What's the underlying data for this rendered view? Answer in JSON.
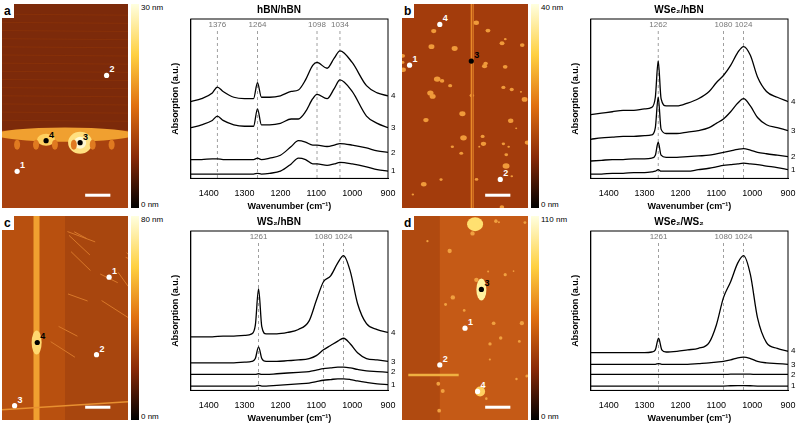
{
  "chart_data": [
    {
      "type": "line",
      "panel": "a",
      "title": "hBN/hBN",
      "x_label": "Wavenumber (cm⁻¹)",
      "y_label": "Absorption (a.u.)",
      "x": [
        1450,
        1420,
        1390,
        1376,
        1360,
        1330,
        1300,
        1275,
        1264,
        1253,
        1230,
        1200,
        1170,
        1150,
        1130,
        1110,
        1098,
        1070,
        1050,
        1034,
        1000,
        960,
        930,
        900
      ],
      "xlim": [
        1450,
        900
      ],
      "xticks": [
        1400,
        1300,
        1200,
        1100,
        1000,
        900
      ],
      "ylim": [
        0,
        11
      ],
      "tick_labels": "x",
      "grid": false,
      "peaks": [
        1376,
        1264,
        1098,
        1034
      ],
      "series": [
        {
          "name": "1",
          "color": "#000000",
          "values": [
            0.3,
            0.3,
            0.3,
            0.3,
            0.3,
            0.3,
            0.3,
            0.3,
            0.35,
            0.3,
            0.35,
            0.5,
            1.0,
            1.4,
            1.3,
            1.0,
            1.0,
            0.9,
            1.0,
            1.1,
            1.0,
            0.8,
            0.6,
            0.5
          ]
        },
        {
          "name": "2",
          "color": "#000000",
          "values": [
            1.3,
            1.3,
            1.35,
            1.35,
            1.3,
            1.3,
            1.3,
            1.3,
            1.4,
            1.3,
            1.4,
            1.6,
            2.2,
            2.6,
            2.5,
            2.3,
            2.3,
            2.2,
            2.3,
            2.4,
            2.3,
            2.1,
            1.9,
            1.8
          ]
        },
        {
          "name": "3",
          "color": "#000000",
          "values": [
            3.5,
            3.7,
            4.0,
            4.3,
            4.0,
            3.7,
            3.6,
            3.6,
            4.8,
            3.7,
            3.7,
            3.8,
            4.1,
            4.1,
            4.6,
            5.5,
            5.8,
            5.5,
            6.2,
            6.8,
            6.0,
            4.3,
            3.8,
            3.5
          ]
        },
        {
          "name": "4",
          "color": "#000000",
          "values": [
            5.3,
            5.5,
            5.9,
            6.3,
            6.0,
            5.6,
            5.5,
            5.5,
            6.6,
            5.6,
            5.6,
            5.7,
            6.0,
            6.1,
            6.8,
            7.8,
            8.0,
            7.6,
            8.3,
            8.8,
            8.0,
            6.4,
            5.9,
            5.7
          ]
        }
      ],
      "image": {
        "points": [
          "1",
          "2",
          "3",
          "4"
        ],
        "colorbar": {
          "range": [
            0,
            30
          ],
          "ticks": [
            {
              "value": 0,
              "label": "0 nm"
            },
            {
              "value": 30,
              "label": "30 nm"
            }
          ]
        }
      }
    },
    {
      "type": "line",
      "panel": "b",
      "title": "WSe₂/hBN",
      "x_label": "Wavenumber (cm⁻¹)",
      "y_label": "Absorption (a.u.)",
      "x": [
        1450,
        1420,
        1390,
        1360,
        1330,
        1300,
        1280,
        1270,
        1262,
        1254,
        1240,
        1210,
        1180,
        1150,
        1120,
        1100,
        1080,
        1060,
        1040,
        1024,
        1005,
        985,
        960,
        930,
        900
      ],
      "xlim": [
        1450,
        900
      ],
      "xticks": [
        1400,
        1300,
        1200,
        1100,
        1000,
        900
      ],
      "ylim": [
        0,
        11
      ],
      "tick_labels": "x",
      "grid": false,
      "peaks": [
        1262,
        1080,
        1024
      ],
      "series": [
        {
          "name": "1",
          "color": "#000000",
          "values": [
            0.3,
            0.3,
            0.35,
            0.35,
            0.4,
            0.4,
            0.45,
            0.5,
            0.6,
            0.5,
            0.5,
            0.5,
            0.5,
            0.6,
            0.7,
            0.8,
            0.9,
            0.95,
            1.0,
            1.05,
            1.0,
            0.95,
            0.85,
            0.75,
            0.6
          ]
        },
        {
          "name": "2",
          "color": "#000000",
          "values": [
            1.2,
            1.25,
            1.3,
            1.3,
            1.35,
            1.35,
            1.4,
            1.6,
            2.5,
            1.6,
            1.45,
            1.45,
            1.5,
            1.55,
            1.6,
            1.7,
            1.8,
            1.9,
            2.0,
            2.05,
            1.95,
            1.8,
            1.7,
            1.6,
            1.5
          ]
        },
        {
          "name": "3",
          "color": "#000000",
          "values": [
            2.7,
            2.8,
            2.85,
            2.9,
            2.9,
            2.95,
            3.0,
            3.5,
            5.6,
            3.4,
            3.1,
            3.1,
            3.2,
            3.3,
            3.5,
            3.8,
            4.1,
            4.6,
            5.2,
            5.5,
            5.0,
            4.2,
            3.7,
            3.5,
            3.3
          ]
        },
        {
          "name": "4",
          "color": "#000000",
          "values": [
            4.4,
            4.5,
            4.6,
            4.7,
            4.7,
            4.8,
            4.9,
            5.6,
            8.1,
            5.5,
            5.0,
            5.0,
            5.2,
            5.5,
            6.0,
            6.6,
            7.1,
            7.8,
            8.7,
            9.1,
            8.5,
            7.0,
            6.0,
            5.6,
            5.3
          ]
        }
      ],
      "image": {
        "points": [
          "1",
          "2",
          "3",
          "4"
        ],
        "colorbar": {
          "range": [
            0,
            40
          ],
          "ticks": [
            {
              "value": 0,
              "label": "0 nm"
            },
            {
              "value": 40,
              "label": "40 nm"
            }
          ]
        }
      }
    },
    {
      "type": "line",
      "panel": "c",
      "title": "WS₂/hBN",
      "x_label": "Wavenumber (cm⁻¹)",
      "y_label": "Absorption (a.u.)",
      "x": [
        1450,
        1420,
        1390,
        1360,
        1330,
        1300,
        1280,
        1270,
        1261,
        1252,
        1240,
        1210,
        1180,
        1150,
        1120,
        1100,
        1080,
        1060,
        1040,
        1024,
        1005,
        985,
        960,
        930,
        900
      ],
      "xlim": [
        1450,
        900
      ],
      "xticks": [
        1400,
        1300,
        1200,
        1100,
        1000,
        900
      ],
      "ylim": [
        0,
        11
      ],
      "tick_labels": "x",
      "grid": false,
      "peaks": [
        1261,
        1080,
        1024
      ],
      "series": [
        {
          "name": "1",
          "color": "#000000",
          "values": [
            0.3,
            0.3,
            0.3,
            0.3,
            0.3,
            0.3,
            0.3,
            0.3,
            0.35,
            0.3,
            0.3,
            0.35,
            0.4,
            0.45,
            0.5,
            0.6,
            0.7,
            0.75,
            0.8,
            0.8,
            0.75,
            0.65,
            0.55,
            0.45,
            0.4
          ]
        },
        {
          "name": "2",
          "color": "#000000",
          "values": [
            1.1,
            1.1,
            1.1,
            1.1,
            1.1,
            1.1,
            1.1,
            1.1,
            1.15,
            1.1,
            1.1,
            1.15,
            1.2,
            1.25,
            1.3,
            1.4,
            1.5,
            1.55,
            1.6,
            1.6,
            1.55,
            1.45,
            1.35,
            1.3,
            1.25
          ]
        },
        {
          "name": "3",
          "color": "#000000",
          "values": [
            1.9,
            1.9,
            1.9,
            1.9,
            1.9,
            1.95,
            2.0,
            2.2,
            3.0,
            2.2,
            2.0,
            2.0,
            2.05,
            2.1,
            2.2,
            2.4,
            2.8,
            3.1,
            3.4,
            3.6,
            3.2,
            2.6,
            2.2,
            2.1,
            2.0
          ]
        },
        {
          "name": "4",
          "color": "#000000",
          "values": [
            3.7,
            3.7,
            3.7,
            3.75,
            3.75,
            3.8,
            3.9,
            4.5,
            7.0,
            4.4,
            3.9,
            3.9,
            4.0,
            4.2,
            4.8,
            6.2,
            7.5,
            7.9,
            8.8,
            9.3,
            8.2,
            6.0,
            4.6,
            4.2,
            4.0
          ]
        }
      ],
      "image": {
        "points": [
          "1",
          "2",
          "3",
          "4"
        ],
        "colorbar": {
          "range": [
            0,
            80
          ],
          "ticks": [
            {
              "value": 0,
              "label": "0 nm"
            },
            {
              "value": 80,
              "label": "80 nm"
            }
          ]
        }
      }
    },
    {
      "type": "line",
      "panel": "d",
      "title": "WSe₂/WS₂",
      "x_label": "Wavenumber (cm⁻¹)",
      "y_label": "Absorption (a.u.)",
      "x": [
        1450,
        1420,
        1390,
        1360,
        1330,
        1300,
        1280,
        1270,
        1261,
        1252,
        1240,
        1210,
        1180,
        1150,
        1120,
        1100,
        1080,
        1060,
        1040,
        1024,
        1005,
        985,
        960,
        930,
        900
      ],
      "xlim": [
        1450,
        900
      ],
      "xticks": [
        1400,
        1300,
        1200,
        1100,
        1000,
        900
      ],
      "ylim": [
        0,
        11
      ],
      "tick_labels": "x",
      "grid": false,
      "peaks": [
        1261,
        1080,
        1024
      ],
      "series": [
        {
          "name": "1",
          "color": "#000000",
          "values": [
            0.3,
            0.3,
            0.3,
            0.3,
            0.3,
            0.3,
            0.3,
            0.3,
            0.3,
            0.3,
            0.3,
            0.3,
            0.3,
            0.3,
            0.3,
            0.3,
            0.3,
            0.32,
            0.33,
            0.33,
            0.32,
            0.3,
            0.3,
            0.3,
            0.3
          ]
        },
        {
          "name": "2",
          "color": "#000000",
          "values": [
            1.1,
            1.1,
            1.1,
            1.1,
            1.1,
            1.1,
            1.1,
            1.1,
            1.1,
            1.1,
            1.1,
            1.1,
            1.1,
            1.1,
            1.1,
            1.1,
            1.1,
            1.12,
            1.13,
            1.13,
            1.12,
            1.1,
            1.1,
            1.1,
            1.1
          ]
        },
        {
          "name": "3",
          "color": "#000000",
          "values": [
            1.8,
            1.8,
            1.8,
            1.8,
            1.8,
            1.8,
            1.8,
            1.8,
            1.85,
            1.8,
            1.8,
            1.8,
            1.8,
            1.85,
            1.9,
            1.95,
            2.0,
            2.1,
            2.25,
            2.3,
            2.2,
            2.0,
            1.9,
            1.85,
            1.8
          ]
        },
        {
          "name": "4",
          "color": "#000000",
          "values": [
            2.6,
            2.6,
            2.6,
            2.6,
            2.6,
            2.6,
            2.65,
            2.8,
            3.6,
            2.8,
            2.65,
            2.7,
            2.8,
            2.9,
            3.3,
            4.5,
            6.4,
            7.5,
            8.8,
            9.3,
            8.0,
            5.0,
            3.3,
            2.9,
            2.7
          ]
        }
      ],
      "image": {
        "points": [
          "1",
          "2",
          "3",
          "4"
        ],
        "colorbar": {
          "range": [
            0,
            110
          ],
          "ticks": [
            {
              "value": 0,
              "label": "0 nm"
            },
            {
              "value": 110,
              "label": "110 nm"
            }
          ]
        }
      }
    }
  ]
}
